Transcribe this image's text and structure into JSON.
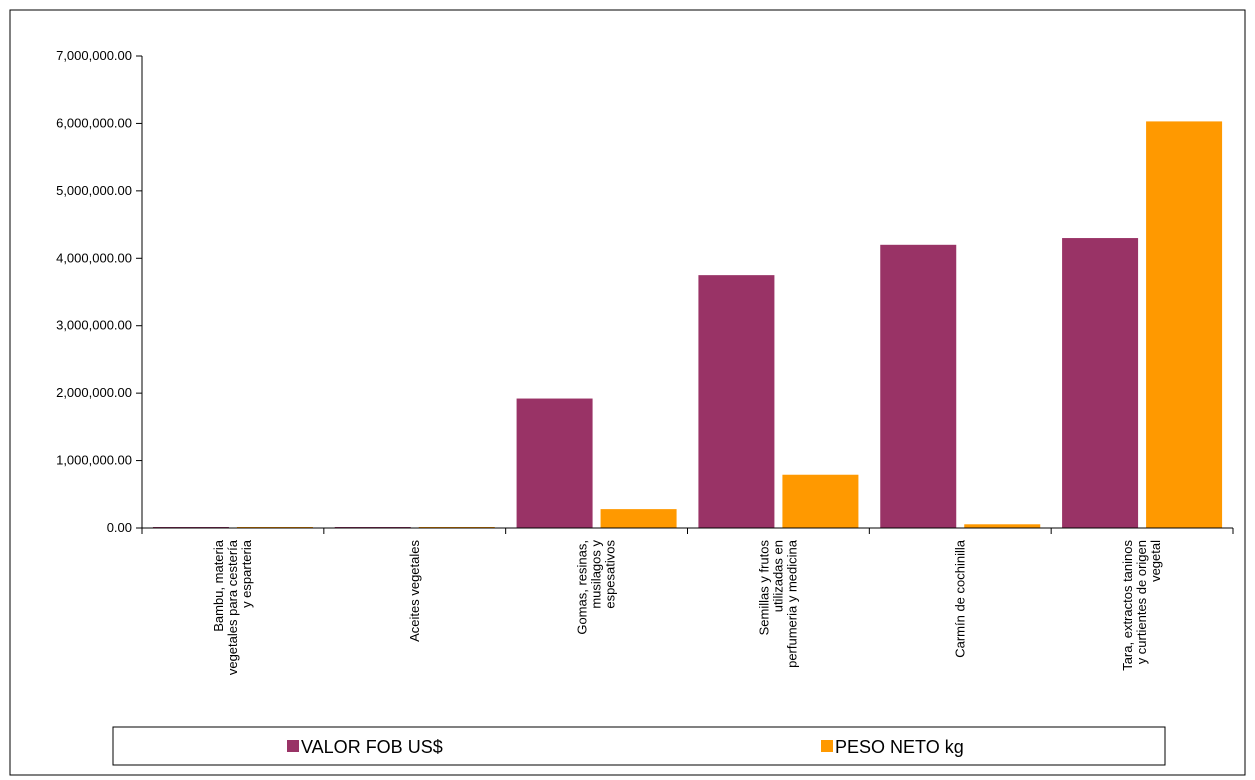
{
  "chart_data": {
    "type": "bar",
    "categories": [
      [
        "Bambu, materia",
        "vegetales para cestería",
        "y esparteria"
      ],
      [
        "Aceites vegetales"
      ],
      [
        "Gomas, resinas,",
        "musilagos y",
        "espesativos"
      ],
      [
        "Semillas y frutos",
        "utilizadas en",
        "perfumeria y medicina"
      ],
      [
        "Carmín de cochinilla"
      ],
      [
        "Tara, extractos taninos",
        "y curtientes de origen",
        "vegetal"
      ]
    ],
    "series": [
      {
        "name": "VALOR FOB US$",
        "color": "#993366",
        "values": [
          8000,
          5000,
          1920000,
          3750000,
          4200000,
          4300000
        ]
      },
      {
        "name": "PESO NETO kg",
        "color": "#FF9900",
        "values": [
          6000,
          3000,
          280000,
          790000,
          55000,
          6030000
        ]
      }
    ],
    "yticks": [
      "0.00",
      "1,000,000.00",
      "2,000,000.00",
      "3,000,000.00",
      "4,000,000.00",
      "5,000,000.00",
      "6,000,000.00",
      "7,000,000.00"
    ],
    "ylim": [
      0,
      7000000
    ],
    "title": "",
    "xlabel": "",
    "ylabel": "",
    "grid": false,
    "legend_position": "bottom"
  }
}
